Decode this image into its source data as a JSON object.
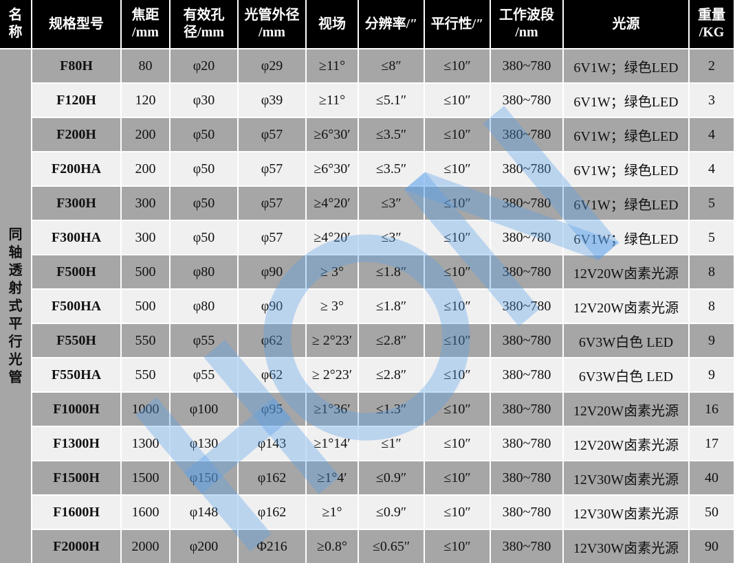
{
  "headers": [
    "名\n称",
    "规格型号",
    "焦距\n/mm",
    "有效孔\n径/mm",
    "光管外径\n/mm",
    "视场",
    "分辨率/″",
    "平行性/″",
    "工作波段\n/nm",
    "光源",
    "重量\n/KG"
  ],
  "category_name": "同轴透射式平行光管",
  "rows": [
    [
      "F80H",
      "80",
      "φ20",
      "φ29",
      "≥11°",
      "≤8″",
      "≤10″",
      "380~780",
      "6V1W；绿色LED",
      "2"
    ],
    [
      "F120H",
      "120",
      "φ30",
      "φ39",
      "≥11°",
      "≤5.1″",
      "≤10″",
      "380~780",
      "6V1W；绿色LED",
      "3"
    ],
    [
      "F200H",
      "200",
      "φ50",
      "φ57",
      "≥6°30′",
      "≤3.5″",
      "≤10″",
      "380~780",
      "6V1W；绿色LED",
      "4"
    ],
    [
      "F200HA",
      "200",
      "φ50",
      "φ57",
      "≥6°30′",
      "≤3.5″",
      "≤10″",
      "380~780",
      "6V1W；绿色LED",
      "4"
    ],
    [
      "F300H",
      "300",
      "φ50",
      "φ57",
      "≥4°20′",
      "≤3″",
      "≤10″",
      "380~780",
      "6V1W；绿色LED",
      "5"
    ],
    [
      "F300HA",
      "300",
      "φ50",
      "φ57",
      "≥4°20′",
      "≤3″",
      "≤10″",
      "380~780",
      "6V1W；绿色LED",
      "5"
    ],
    [
      "F500H",
      "500",
      "φ80",
      "φ90",
      "≥ 3°",
      "≤1.8″",
      "≤10″",
      "380~780",
      "12V20W卤素光源",
      "8"
    ],
    [
      "F500HA",
      "500",
      "φ80",
      "φ90",
      "≥ 3°",
      "≤1.8″",
      "≤10″",
      "380~780",
      "12V20W卤素光源",
      "8"
    ],
    [
      "F550H",
      "550",
      "φ55",
      "φ62",
      "≥ 2°23′",
      "≤2.8″",
      "≤10″",
      "380~780",
      "6V3W白色 LED",
      "9"
    ],
    [
      "F550HA",
      "550",
      "φ55",
      "φ62",
      "≥ 2°23′",
      "≤2.8″",
      "≤10″",
      "380~780",
      "6V3W白色 LED",
      "9"
    ],
    [
      "F1000H",
      "1000",
      "φ100",
      "φ95",
      "≥1°36′",
      "≤1.3″",
      "≤10″",
      "380~780",
      "12V20W卤素光源",
      "16"
    ],
    [
      "F1300H",
      "1300",
      "φ130",
      "φ143",
      "≥1°14′",
      "≤1″",
      "≤10″",
      "380~780",
      "12V20W卤素光源",
      "17"
    ],
    [
      "F1500H",
      "1500",
      "φ150",
      "φ162",
      "≥1°4′",
      "≤0.9″",
      "≤10″",
      "380~780",
      "12V30W卤素光源",
      "40"
    ],
    [
      "F1600H",
      "1600",
      "φ148",
      "φ162",
      "≥1°",
      "≤0.9″",
      "≤10″",
      "380~780",
      "12V30W卤素光源",
      "50"
    ],
    [
      "F2000H",
      "2000",
      "φ200",
      "Φ216",
      "≥0.8°",
      "≤0.65″",
      "≤10″",
      "380~780",
      "12V30W卤素光源",
      "90"
    ]
  ],
  "colors": {
    "header_bg": "#000000",
    "row_dark": "#a6a6a6",
    "row_light": "#f0f0f0",
    "watermark": "#4a90e2"
  }
}
